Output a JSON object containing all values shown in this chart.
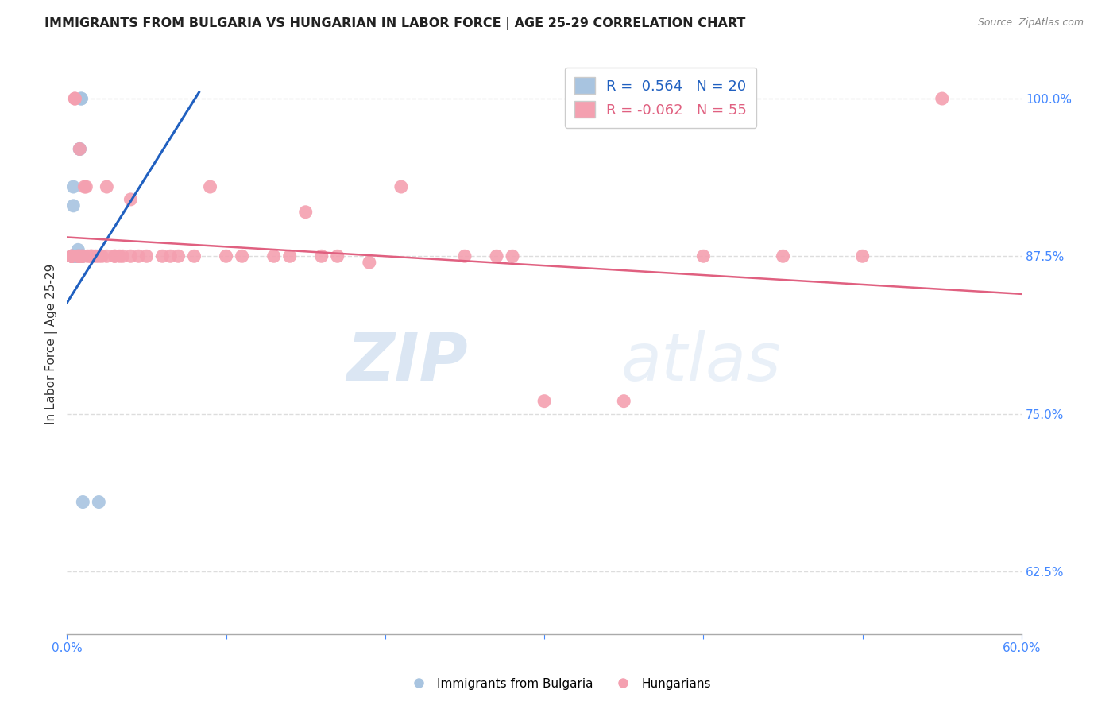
{
  "title": "IMMIGRANTS FROM BULGARIA VS HUNGARIAN IN LABOR FORCE | AGE 25-29 CORRELATION CHART",
  "source": "Source: ZipAtlas.com",
  "xlabel": "",
  "ylabel": "In Labor Force | Age 25-29",
  "xlim": [
    0.0,
    0.6
  ],
  "ylim": [
    0.575,
    1.035
  ],
  "ytick_right_labels": [
    "100.0%",
    "87.5%",
    "75.0%",
    "62.5%"
  ],
  "ytick_right_values": [
    1.0,
    0.875,
    0.75,
    0.625
  ],
  "legend_r_blue": "0.564",
  "legend_n_blue": "20",
  "legend_r_pink": "-0.062",
  "legend_n_pink": "55",
  "blue_color": "#a8c4e0",
  "pink_color": "#f4a0b0",
  "blue_line_color": "#2060c0",
  "pink_line_color": "#e06080",
  "watermark_zip": "ZIP",
  "watermark_atlas": "atlas",
  "blue_scatter_x": [
    0.003,
    0.003,
    0.003,
    0.004,
    0.004,
    0.005,
    0.005,
    0.006,
    0.006,
    0.007,
    0.007,
    0.007,
    0.008,
    0.008,
    0.009,
    0.009,
    0.009,
    0.01,
    0.01,
    0.02
  ],
  "blue_scatter_y": [
    0.875,
    0.875,
    0.875,
    0.915,
    0.93,
    0.875,
    0.875,
    0.875,
    0.875,
    0.875,
    0.88,
    0.875,
    0.96,
    0.96,
    1.0,
    1.0,
    0.875,
    0.875,
    0.68,
    0.68
  ],
  "pink_scatter_x": [
    0.003,
    0.003,
    0.003,
    0.003,
    0.005,
    0.005,
    0.007,
    0.007,
    0.008,
    0.008,
    0.009,
    0.01,
    0.01,
    0.011,
    0.012,
    0.013,
    0.015,
    0.015,
    0.016,
    0.018,
    0.02,
    0.022,
    0.025,
    0.025,
    0.03,
    0.03,
    0.033,
    0.035,
    0.04,
    0.04,
    0.045,
    0.05,
    0.06,
    0.065,
    0.07,
    0.08,
    0.09,
    0.1,
    0.11,
    0.13,
    0.14,
    0.15,
    0.16,
    0.17,
    0.19,
    0.21,
    0.25,
    0.27,
    0.28,
    0.3,
    0.35,
    0.4,
    0.45,
    0.5,
    0.55
  ],
  "pink_scatter_y": [
    0.875,
    0.875,
    0.875,
    0.875,
    1.0,
    1.0,
    0.875,
    0.875,
    0.96,
    0.875,
    0.875,
    0.875,
    0.875,
    0.93,
    0.93,
    0.875,
    0.875,
    0.875,
    0.875,
    0.875,
    0.875,
    0.875,
    0.93,
    0.875,
    0.875,
    0.875,
    0.875,
    0.875,
    0.92,
    0.875,
    0.875,
    0.875,
    0.875,
    0.875,
    0.875,
    0.875,
    0.93,
    0.875,
    0.875,
    0.875,
    0.875,
    0.91,
    0.875,
    0.875,
    0.87,
    0.93,
    0.875,
    0.875,
    0.875,
    0.76,
    0.76,
    0.875,
    0.875,
    0.875,
    1.0
  ],
  "blue_line_x0": 0.0,
  "blue_line_y0": 0.838,
  "blue_line_x1": 0.083,
  "blue_line_y1": 1.005,
  "pink_line_x0": 0.0,
  "pink_line_y0": 0.89,
  "pink_line_x1": 0.6,
  "pink_line_y1": 0.845,
  "grid_color": "#dddddd",
  "title_color": "#222222",
  "axis_label_color": "#333333",
  "right_tick_color": "#4488ff",
  "bottom_tick_color": "#4488ff"
}
